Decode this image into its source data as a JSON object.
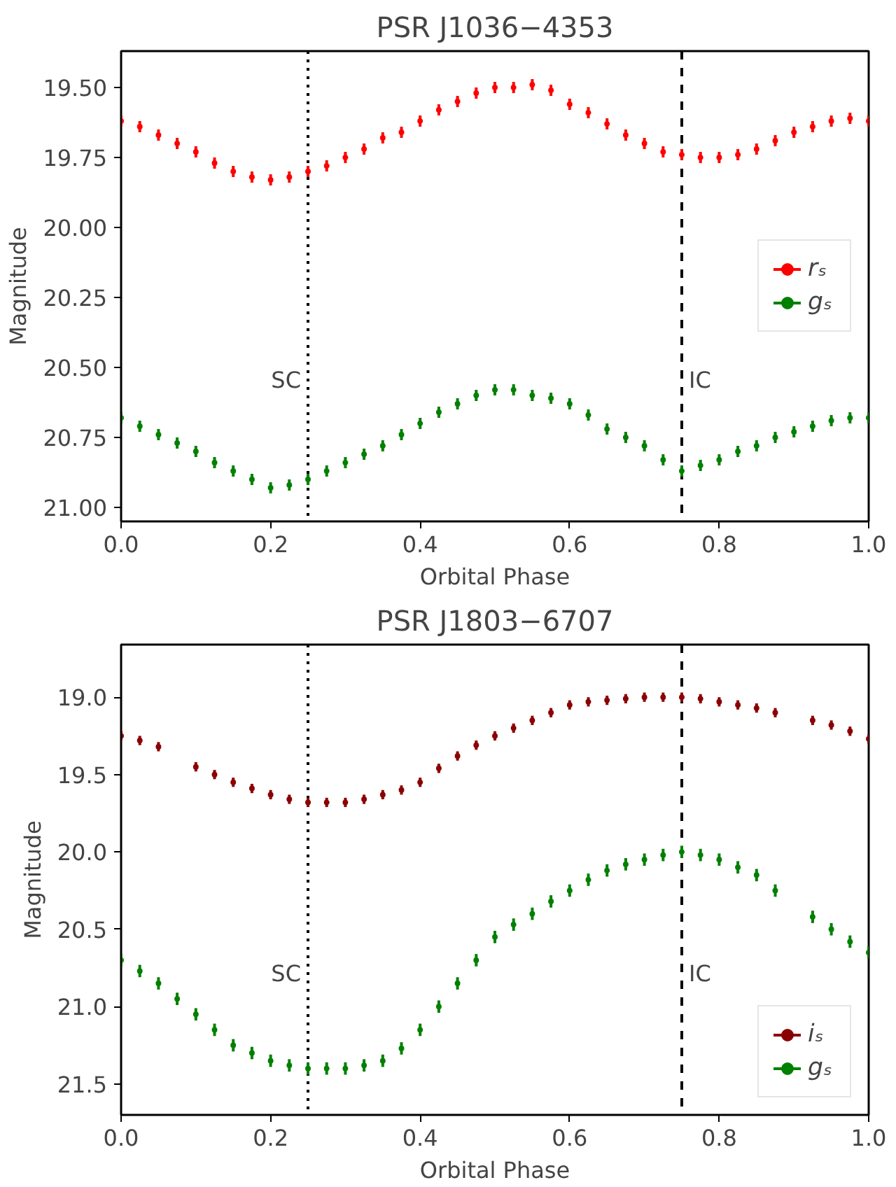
{
  "chart_data": [
    {
      "type": "scatter",
      "title": "PSR J1036−4353",
      "xlabel": "Orbital Phase",
      "ylabel": "Magnitude",
      "x": [
        0,
        0.025,
        0.05,
        0.075,
        0.1,
        0.125,
        0.15,
        0.175,
        0.2,
        0.225,
        0.25,
        0.275,
        0.3,
        0.325,
        0.35,
        0.375,
        0.4,
        0.425,
        0.45,
        0.475,
        0.5,
        0.525,
        0.55,
        0.575,
        0.6,
        0.625,
        0.65,
        0.675,
        0.7,
        0.725,
        0.75,
        0.775,
        0.8,
        0.825,
        0.85,
        0.875,
        0.9,
        0.925,
        0.95,
        0.975,
        1.0
      ],
      "series": [
        {
          "name": "rₛ",
          "color": "#ff0000",
          "values": [
            19.62,
            19.64,
            19.67,
            19.7,
            19.73,
            19.77,
            19.8,
            19.82,
            19.83,
            19.82,
            19.8,
            19.78,
            19.75,
            19.72,
            19.68,
            19.66,
            19.62,
            19.58,
            19.55,
            19.52,
            19.5,
            19.5,
            19.49,
            19.51,
            19.56,
            19.59,
            19.63,
            19.67,
            19.7,
            19.73,
            19.74,
            19.75,
            19.75,
            19.74,
            19.72,
            19.69,
            19.66,
            19.64,
            19.62,
            19.61,
            19.62
          ],
          "errors": [
            0.02,
            0.02,
            0.02,
            0.02,
            0.02,
            0.02,
            0.02,
            0.02,
            0.02,
            0.02,
            0.02,
            0.02,
            0.02,
            0.02,
            0.02,
            0.02,
            0.02,
            0.02,
            0.02,
            0.02,
            0.02,
            0.02,
            0.02,
            0.02,
            0.02,
            0.02,
            0.02,
            0.02,
            0.02,
            0.02,
            0.02,
            0.02,
            0.02,
            0.02,
            0.02,
            0.02,
            0.02,
            0.02,
            0.02,
            0.02,
            0.02
          ]
        },
        {
          "name": "gₛ",
          "color": "#008000",
          "values": [
            20.68,
            20.71,
            20.74,
            20.77,
            20.8,
            20.84,
            20.87,
            20.9,
            20.93,
            20.92,
            20.9,
            20.87,
            20.84,
            20.81,
            20.78,
            20.74,
            20.7,
            20.66,
            20.63,
            20.6,
            20.58,
            20.58,
            20.6,
            20.61,
            20.63,
            20.67,
            20.72,
            20.75,
            20.78,
            20.83,
            20.87,
            20.85,
            20.83,
            20.8,
            20.78,
            20.75,
            20.73,
            20.71,
            20.69,
            20.68,
            20.68
          ],
          "errors": [
            0.02,
            0.02,
            0.02,
            0.02,
            0.02,
            0.02,
            0.02,
            0.02,
            0.02,
            0.02,
            0.02,
            0.02,
            0.02,
            0.02,
            0.02,
            0.02,
            0.02,
            0.02,
            0.02,
            0.02,
            0.02,
            0.02,
            0.02,
            0.02,
            0.02,
            0.02,
            0.02,
            0.02,
            0.02,
            0.02,
            0.02,
            0.02,
            0.02,
            0.02,
            0.02,
            0.02,
            0.02,
            0.02,
            0.02,
            0.02,
            0.02
          ]
        }
      ],
      "xlim": [
        0,
        1
      ],
      "ylim": [
        21.05,
        19.37
      ],
      "xticks": [
        {
          "value": 0,
          "label": "0.0"
        },
        {
          "value": 0.2,
          "label": "0.2"
        },
        {
          "value": 0.4,
          "label": "0.4"
        },
        {
          "value": 0.6,
          "label": "0.6"
        },
        {
          "value": 0.8,
          "label": "0.8"
        },
        {
          "value": 1,
          "label": "1.0"
        }
      ],
      "yticks": [
        {
          "value": 19.5,
          "label": "19.50"
        },
        {
          "value": 19.75,
          "label": "19.75"
        },
        {
          "value": 20,
          "label": "20.00"
        },
        {
          "value": 20.25,
          "label": "20.25"
        },
        {
          "value": 20.5,
          "label": "20.50"
        },
        {
          "value": 20.75,
          "label": "20.75"
        },
        {
          "value": 21,
          "label": "21.00"
        }
      ],
      "ref_lines": [
        {
          "axis": "x",
          "value": 0.25,
          "label": "SC",
          "color": "#000000",
          "line_style": "dotted"
        },
        {
          "axis": "x",
          "value": 0.75,
          "label": "IC",
          "color": "#000000",
          "line_style": "dashed"
        }
      ],
      "marker": "circle",
      "grid": false,
      "legend": "right"
    },
    {
      "type": "scatter",
      "title": "PSR J1803−6707",
      "xlabel": "Orbital Phase",
      "ylabel": "Magnitude",
      "x": [
        0,
        0.025,
        0.05,
        0.075,
        0.1,
        0.125,
        0.15,
        0.175,
        0.2,
        0.225,
        0.25,
        0.275,
        0.3,
        0.325,
        0.35,
        0.375,
        0.4,
        0.425,
        0.45,
        0.475,
        0.5,
        0.525,
        0.55,
        0.575,
        0.6,
        0.625,
        0.65,
        0.675,
        0.7,
        0.725,
        0.75,
        0.775,
        0.8,
        0.825,
        0.85,
        0.875,
        0.9,
        0.925,
        0.95,
        0.975,
        1.0
      ],
      "series": [
        {
          "name": "iₛ",
          "color": "#8b0000",
          "values": [
            19.25,
            19.28,
            19.32,
            null,
            19.45,
            19.5,
            19.55,
            19.59,
            19.63,
            19.66,
            19.68,
            19.68,
            19.68,
            19.66,
            19.63,
            19.6,
            19.55,
            19.46,
            19.38,
            19.31,
            19.25,
            19.2,
            19.15,
            19.1,
            19.05,
            19.03,
            19.02,
            19.01,
            19.0,
            19.0,
            19.0,
            19.01,
            19.03,
            19.05,
            19.07,
            19.1,
            null,
            19.15,
            19.18,
            19.22,
            19.27
          ],
          "errors": [
            0.03,
            0.03,
            0.03,
            null,
            0.03,
            0.03,
            0.03,
            0.03,
            0.03,
            0.03,
            0.03,
            0.03,
            0.03,
            0.03,
            0.03,
            0.03,
            0.03,
            0.03,
            0.03,
            0.03,
            0.03,
            0.03,
            0.03,
            0.03,
            0.03,
            0.03,
            0.03,
            0.03,
            0.03,
            0.03,
            0.03,
            0.03,
            0.03,
            0.03,
            0.03,
            0.03,
            null,
            0.03,
            0.03,
            0.03,
            0.03
          ]
        },
        {
          "name": "gₛ",
          "color": "#008000",
          "values": [
            20.7,
            20.77,
            20.85,
            20.95,
            21.05,
            21.15,
            21.25,
            21.3,
            21.35,
            21.38,
            21.4,
            21.4,
            21.4,
            21.38,
            21.35,
            21.27,
            21.15,
            21.0,
            20.85,
            20.7,
            20.55,
            20.47,
            20.4,
            20.32,
            20.25,
            20.18,
            20.12,
            20.08,
            20.05,
            20.02,
            20.0,
            20.02,
            20.05,
            20.1,
            20.15,
            20.25,
            null,
            20.42,
            20.5,
            20.58,
            20.65
          ],
          "errors": [
            0.04,
            0.04,
            0.04,
            0.04,
            0.04,
            0.04,
            0.04,
            0.04,
            0.04,
            0.04,
            0.04,
            0.04,
            0.04,
            0.04,
            0.04,
            0.04,
            0.04,
            0.04,
            0.04,
            0.04,
            0.04,
            0.04,
            0.04,
            0.04,
            0.04,
            0.04,
            0.04,
            0.04,
            0.04,
            0.04,
            0.04,
            0.04,
            0.04,
            0.04,
            0.04,
            0.04,
            null,
            0.04,
            0.04,
            0.04,
            0.04
          ]
        }
      ],
      "xlim": [
        0,
        1
      ],
      "ylim": [
        21.7,
        18.66
      ],
      "xticks": [
        {
          "value": 0,
          "label": "0.0"
        },
        {
          "value": 0.2,
          "label": "0.2"
        },
        {
          "value": 0.4,
          "label": "0.4"
        },
        {
          "value": 0.6,
          "label": "0.6"
        },
        {
          "value": 0.8,
          "label": "0.8"
        },
        {
          "value": 1,
          "label": "1.0"
        }
      ],
      "yticks": [
        {
          "value": 19,
          "label": "19.0"
        },
        {
          "value": 19.5,
          "label": "19.5"
        },
        {
          "value": 20,
          "label": "20.0"
        },
        {
          "value": 20.5,
          "label": "20.5"
        },
        {
          "value": 21,
          "label": "21.0"
        },
        {
          "value": 21.5,
          "label": "21.5"
        }
      ],
      "ref_lines": [
        {
          "axis": "x",
          "value": 0.25,
          "label": "SC",
          "color": "#000000",
          "line_style": "dotted"
        },
        {
          "axis": "x",
          "value": 0.75,
          "label": "IC",
          "color": "#000000",
          "line_style": "dashed"
        }
      ],
      "marker": "circle",
      "grid": false,
      "legend": "bottom right"
    }
  ]
}
